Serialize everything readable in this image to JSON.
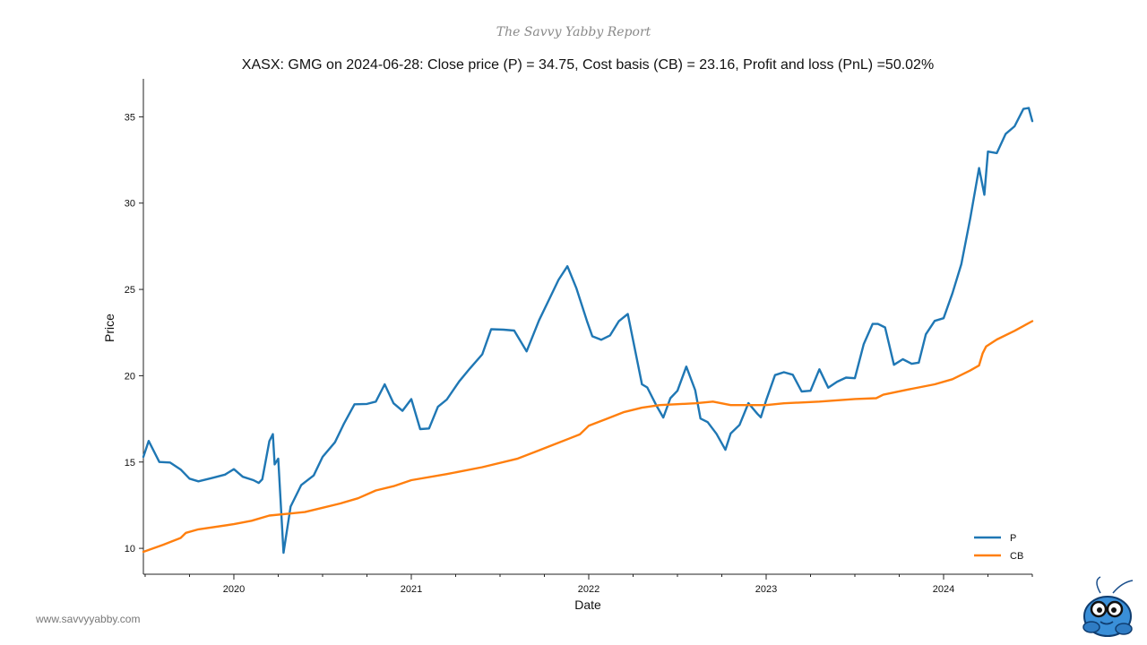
{
  "brand": {
    "header": "The Savvy Yabby Report",
    "footer_url": "www.savvyyabby.com"
  },
  "chart_data": {
    "type": "line",
    "title": "XASX: GMG on 2024-06-28: Close price (P) = 34.75, Cost basis (CB) = 23.16, Profit and loss (PnL) =50.02%",
    "xlabel": "Date",
    "ylabel": "Price",
    "xlim": [
      2019.49,
      2024.5
    ],
    "ylim": [
      8.5,
      37.2
    ],
    "y_ticks": [
      10,
      15,
      20,
      25,
      30,
      35
    ],
    "y_tick_labels": [
      "10",
      "15",
      "20",
      "25",
      "30",
      "35"
    ],
    "x_ticks": [
      2020.0,
      2021.0,
      2022.0,
      2023.0,
      2024.0
    ],
    "x_tick_labels": [
      "2020",
      "2021",
      "2022",
      "2023",
      "2024"
    ],
    "x_minor_ticks": [
      2019.5,
      2019.75,
      2020.25,
      2020.5,
      2020.75,
      2021.25,
      2021.5,
      2021.75,
      2022.25,
      2022.5,
      2022.75,
      2023.25,
      2023.5,
      2023.75,
      2024.25,
      2024.5
    ],
    "grid": false,
    "legend_position": "bottom-right",
    "series": [
      {
        "name": "P",
        "color": "#1f77b4",
        "x": [
          2019.49,
          2019.52,
          2019.58,
          2019.64,
          2019.7,
          2019.75,
          2019.8,
          2019.88,
          2019.95,
          2020.0,
          2020.05,
          2020.11,
          2020.14,
          2020.16,
          2020.2,
          2020.22,
          2020.23,
          2020.25,
          2020.28,
          2020.32,
          2020.38,
          2020.45,
          2020.5,
          2020.57,
          2020.62,
          2020.68,
          2020.75,
          2020.8,
          2020.85,
          2020.9,
          2020.95,
          2021.0,
          2021.05,
          2021.1,
          2021.15,
          2021.2,
          2021.27,
          2021.33,
          2021.4,
          2021.45,
          2021.52,
          2021.58,
          2021.65,
          2021.72,
          2021.78,
          2021.83,
          2021.88,
          2021.93,
          2021.99,
          2022.02,
          2022.07,
          2022.12,
          2022.17,
          2022.22,
          2022.3,
          2022.33,
          2022.38,
          2022.42,
          2022.46,
          2022.5,
          2022.55,
          2022.6,
          2022.63,
          2022.67,
          2022.72,
          2022.77,
          2022.8,
          2022.85,
          2022.9,
          2022.95,
          2022.97,
          2023.0,
          2023.05,
          2023.1,
          2023.15,
          2023.2,
          2023.25,
          2023.3,
          2023.35,
          2023.4,
          2023.45,
          2023.5,
          2023.55,
          2023.6,
          2023.63,
          2023.67,
          2023.72,
          2023.77,
          2023.82,
          2023.86,
          2023.9,
          2023.95,
          2024.0,
          2024.05,
          2024.1,
          2024.15,
          2024.2,
          2024.23,
          2024.25,
          2024.3,
          2024.35,
          2024.4,
          2024.45,
          2024.48,
          2024.5
        ],
        "values": [
          15.3,
          16.0,
          15.3,
          14.8,
          14.5,
          14.3,
          13.6,
          14.2,
          14.4,
          14.3,
          14.4,
          13.9,
          13.6,
          14.3,
          16.0,
          16.6,
          15.1,
          14.9,
          9.9,
          12.5,
          13.4,
          14.5,
          15.2,
          16.0,
          17.5,
          18.1,
          18.4,
          18.7,
          19.2,
          18.6,
          18.0,
          18.4,
          17.2,
          16.8,
          18.1,
          18.9,
          19.4,
          20.5,
          21.4,
          22.4,
          22.9,
          22.6,
          21.2,
          23.5,
          24.3,
          25.5,
          26.6,
          24.8,
          23.3,
          22.4,
          21.8,
          22.6,
          23.1,
          23.4,
          19.8,
          19.1,
          18.3,
          17.8,
          18.4,
          19.3,
          20.6,
          18.9,
          17.8,
          17.2,
          16.5,
          16.0,
          16.4,
          17.2,
          18.6,
          17.5,
          17.8,
          18.6,
          19.8,
          20.5,
          19.9,
          19.0,
          19.4,
          20.1,
          19.4,
          19.8,
          19.6,
          20.1,
          21.8,
          22.8,
          23.3,
          22.6,
          20.6,
          21.2,
          20.4,
          20.9,
          22.5,
          22.9,
          23.6,
          24.7,
          26.3,
          29.4,
          31.8,
          30.5,
          33.2,
          32.6,
          34.2,
          34.5,
          35.2,
          35.8,
          34.75
        ]
      },
      {
        "name": "CB",
        "color": "#ff7f0e",
        "x": [
          2019.49,
          2019.6,
          2019.7,
          2019.73,
          2019.8,
          2020.0,
          2020.1,
          2020.2,
          2020.3,
          2020.4,
          2020.5,
          2020.6,
          2020.7,
          2020.8,
          2020.9,
          2021.0,
          2021.2,
          2021.4,
          2021.6,
          2021.7,
          2021.8,
          2021.95,
          2022.0,
          2022.1,
          2022.2,
          2022.3,
          2022.4,
          2022.5,
          2022.6,
          2022.7,
          2022.8,
          2022.9,
          2023.0,
          2023.1,
          2023.3,
          2023.5,
          2023.62,
          2023.66,
          2023.8,
          2023.95,
          2024.05,
          2024.15,
          2024.2,
          2024.22,
          2024.24,
          2024.3,
          2024.4,
          2024.5
        ],
        "values": [
          9.8,
          10.2,
          10.6,
          10.9,
          11.1,
          11.4,
          11.6,
          11.9,
          12.0,
          12.1,
          12.35,
          12.6,
          12.9,
          13.35,
          13.6,
          13.95,
          14.3,
          14.7,
          15.2,
          15.6,
          16.0,
          16.6,
          17.1,
          17.5,
          17.9,
          18.15,
          18.3,
          18.35,
          18.4,
          18.5,
          18.3,
          18.3,
          18.3,
          18.4,
          18.5,
          18.65,
          18.7,
          18.9,
          19.2,
          19.5,
          19.8,
          20.3,
          20.6,
          21.3,
          21.7,
          22.1,
          22.6,
          23.16
        ]
      }
    ]
  }
}
